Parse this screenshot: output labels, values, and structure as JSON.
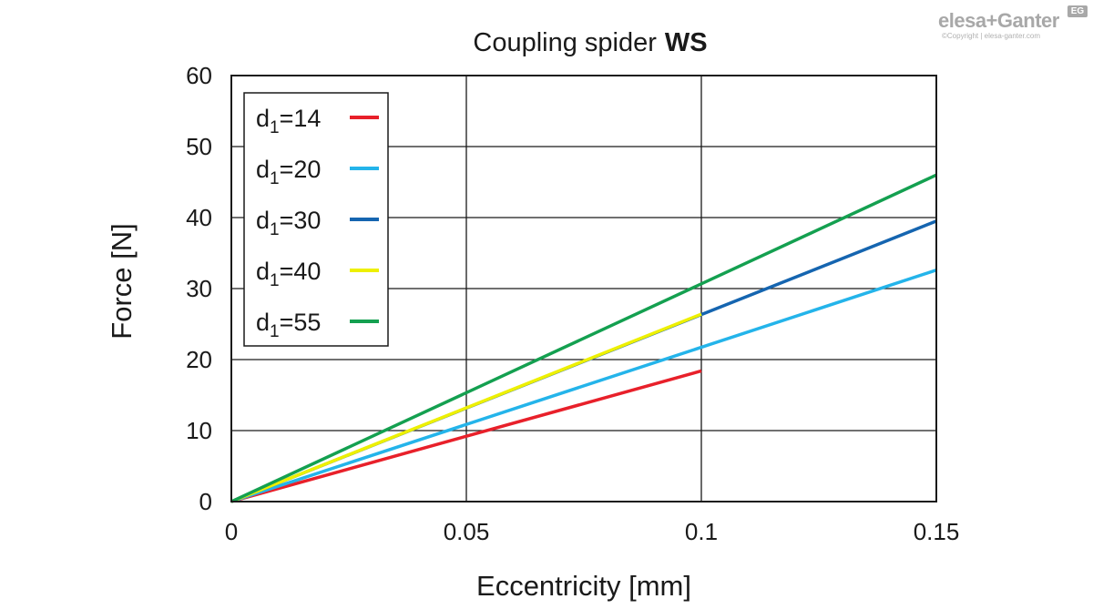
{
  "brand": {
    "logo_text": "elesa+Ganter",
    "badge_text": "EG",
    "copyright": "©Copyright | elesa-ganter.com",
    "color": "#a8a8a8"
  },
  "chart_data": {
    "type": "line",
    "title": "Coupling spider",
    "title_bold": "WS",
    "xlabel": "Eccentricity [mm]",
    "ylabel": "Force [N]",
    "xlim": [
      0,
      0.15
    ],
    "ylim": [
      0,
      60
    ],
    "x_ticks": [
      0,
      0.05,
      0.1,
      0.15
    ],
    "x_tick_labels": [
      "0",
      "0.05",
      "0.1",
      "0.15"
    ],
    "y_ticks": [
      0,
      10,
      20,
      30,
      40,
      50,
      60
    ],
    "y_tick_labels": [
      "0",
      "10",
      "20",
      "30",
      "40",
      "50",
      "60"
    ],
    "x_grid": [
      0.05,
      0.1
    ],
    "y_grid": [
      10,
      20,
      30,
      40,
      50
    ],
    "grid": true,
    "legend_position": "top-left",
    "series": [
      {
        "name_base": "d",
        "name_sub": "1",
        "name_value": "=14",
        "color": "#e8202a",
        "x": [
          0,
          0.1
        ],
        "y": [
          0,
          18.4
        ]
      },
      {
        "name_base": "d",
        "name_sub": "1",
        "name_value": "=20",
        "color": "#24b4ea",
        "x": [
          0,
          0.15
        ],
        "y": [
          0,
          32.6
        ]
      },
      {
        "name_base": "d",
        "name_sub": "1",
        "name_value": "=30",
        "color": "#1565b0",
        "x": [
          0,
          0.15
        ],
        "y": [
          0,
          39.5
        ]
      },
      {
        "name_base": "d",
        "name_sub": "1",
        "name_value": "=40",
        "color": "#eef000",
        "x": [
          0,
          0.1
        ],
        "y": [
          0,
          26.4
        ]
      },
      {
        "name_base": "d",
        "name_sub": "1",
        "name_value": "=55",
        "color": "#14a050",
        "x": [
          0,
          0.15
        ],
        "y": [
          0,
          46
        ]
      }
    ]
  }
}
